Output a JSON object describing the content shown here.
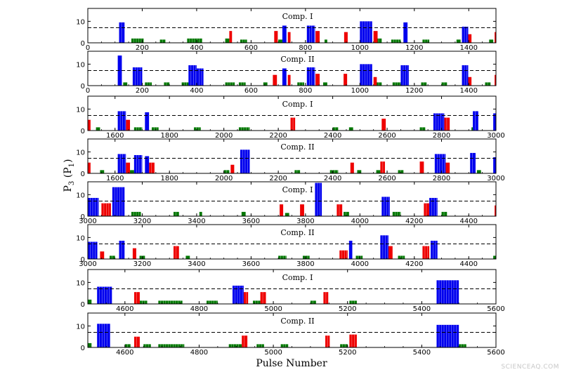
{
  "xlabel": "Pulse Number",
  "ylabel": "P",
  "ylabel_sub": "3",
  "ylabel_paren_open": " (P",
  "ylabel_paren_sub": "1",
  "ylabel_paren_close": ")",
  "watermark": "SCIENCEAQ.COM",
  "colors": {
    "blue": "#0000ee",
    "red": "#ee0000",
    "green": "#007700",
    "threshold_line": "#000000"
  },
  "threshold": 7,
  "chart_data": [
    {
      "type": "bar",
      "component": "Comp. I",
      "xlim": [
        0,
        1500
      ],
      "ylim": [
        0,
        16
      ],
      "xticks": [
        0,
        200,
        400,
        600,
        800,
        1000,
        1200,
        1400
      ],
      "yticks": [
        0,
        10
      ],
      "blue": [
        [
          115,
          135,
          9.5
        ],
        [
          715,
          730,
          8
        ],
        [
          805,
          835,
          8
        ],
        [
          1000,
          1045,
          10
        ],
        [
          1160,
          1175,
          9.5
        ],
        [
          1375,
          1398,
          7.5
        ]
      ],
      "red": [
        [
          520,
          530,
          5.5
        ],
        [
          685,
          698,
          5.5
        ],
        [
          735,
          745,
          5
        ],
        [
          837,
          852,
          5.5
        ],
        [
          942,
          955,
          5
        ],
        [
          1050,
          1065,
          5.5
        ],
        [
          1398,
          1410,
          4
        ],
        [
          1495,
          1500,
          5
        ]
      ],
      "green": [
        [
          160,
          205,
          2
        ],
        [
          265,
          285,
          1.5
        ],
        [
          365,
          420,
          2
        ],
        [
          505,
          520,
          2
        ],
        [
          560,
          585,
          1.5
        ],
        [
          700,
          715,
          1.5
        ],
        [
          870,
          880,
          1.5
        ],
        [
          1060,
          1080,
          2
        ],
        [
          1115,
          1150,
          1.5
        ],
        [
          1230,
          1255,
          1.5
        ],
        [
          1355,
          1370,
          1.5
        ],
        [
          1475,
          1490,
          1.5
        ]
      ]
    },
    {
      "type": "bar",
      "component": "Comp. II",
      "xlim": [
        0,
        1500
      ],
      "ylim": [
        0,
        16
      ],
      "xticks": [
        0,
        200,
        400,
        600,
        800,
        1000,
        1200,
        1400
      ],
      "yticks": [
        0,
        10
      ],
      "blue": [
        [
          110,
          125,
          14
        ],
        [
          165,
          200,
          8.5
        ],
        [
          370,
          400,
          9.5
        ],
        [
          400,
          425,
          8
        ],
        [
          715,
          730,
          8
        ],
        [
          805,
          835,
          8.5
        ],
        [
          1000,
          1045,
          10
        ],
        [
          1150,
          1180,
          9.5
        ],
        [
          1375,
          1398,
          9.5
        ]
      ],
      "red": [
        [
          680,
          695,
          5
        ],
        [
          735,
          745,
          5
        ],
        [
          837,
          852,
          5.5
        ],
        [
          940,
          953,
          5.5
        ],
        [
          1050,
          1062,
          4
        ],
        [
          1398,
          1410,
          4
        ],
        [
          1495,
          1500,
          5
        ]
      ],
      "green": [
        [
          130,
          145,
          1.5
        ],
        [
          210,
          235,
          1.5
        ],
        [
          280,
          300,
          1.5
        ],
        [
          345,
          375,
          1.5
        ],
        [
          505,
          540,
          1.5
        ],
        [
          555,
          580,
          1.5
        ],
        [
          645,
          660,
          1.5
        ],
        [
          770,
          795,
          1.5
        ],
        [
          865,
          880,
          1.5
        ],
        [
          1060,
          1080,
          1.5
        ],
        [
          1120,
          1150,
          1.5
        ],
        [
          1225,
          1245,
          1.5
        ],
        [
          1300,
          1320,
          1.5
        ],
        [
          1460,
          1480,
          1.5
        ]
      ]
    },
    {
      "type": "bar",
      "component": "Comp. I",
      "xlim": [
        1500,
        3000
      ],
      "ylim": [
        0,
        16
      ],
      "xticks": [
        1600,
        1800,
        2000,
        2200,
        2400,
        2600,
        2800,
        3000
      ],
      "yticks": [
        0,
        10
      ],
      "blue": [
        [
          1610,
          1640,
          9
        ],
        [
          1710,
          1725,
          8.5
        ],
        [
          2770,
          2810,
          8
        ],
        [
          2915,
          2935,
          9
        ],
        [
          2990,
          3000,
          8
        ]
      ],
      "red": [
        [
          1500,
          1510,
          5
        ],
        [
          1640,
          1655,
          5
        ],
        [
          2245,
          2262,
          6
        ],
        [
          2580,
          2595,
          5.5
        ],
        [
          2810,
          2830,
          6
        ]
      ],
      "green": [
        [
          1530,
          1545,
          1.5
        ],
        [
          1670,
          1700,
          1.5
        ],
        [
          1735,
          1760,
          1.5
        ],
        [
          1890,
          1915,
          1.5
        ],
        [
          2055,
          2095,
          1.5
        ],
        [
          2400,
          2420,
          1.5
        ],
        [
          2460,
          2475,
          1.5
        ],
        [
          2720,
          2740,
          1.5
        ],
        [
          2910,
          2930,
          1.5
        ]
      ]
    },
    {
      "type": "bar",
      "component": "Comp. II",
      "xlim": [
        1500,
        3000
      ],
      "ylim": [
        0,
        16
      ],
      "xticks": [
        1600,
        1800,
        2000,
        2200,
        2400,
        2600,
        2800,
        3000
      ],
      "yticks": [
        0,
        10
      ],
      "blue": [
        [
          1610,
          1640,
          9
        ],
        [
          1670,
          1700,
          8.5
        ],
        [
          1710,
          1725,
          8
        ],
        [
          2060,
          2095,
          11
        ],
        [
          2775,
          2815,
          9
        ],
        [
          2905,
          2925,
          9.5
        ],
        [
          2990,
          3000,
          7.5
        ]
      ],
      "red": [
        [
          1500,
          1510,
          5
        ],
        [
          1640,
          1655,
          5
        ],
        [
          1725,
          1745,
          5
        ],
        [
          2025,
          2038,
          4
        ],
        [
          2465,
          2478,
          5
        ],
        [
          2575,
          2592,
          5.5
        ],
        [
          2720,
          2735,
          5.5
        ],
        [
          2815,
          2830,
          5
        ]
      ],
      "green": [
        [
          1545,
          1560,
          1.5
        ],
        [
          1655,
          1670,
          1.5
        ],
        [
          2000,
          2020,
          1.5
        ],
        [
          2260,
          2280,
          1.5
        ],
        [
          2390,
          2420,
          1.5
        ],
        [
          2490,
          2505,
          1.5
        ],
        [
          2560,
          2575,
          1.5
        ],
        [
          2640,
          2660,
          1.5
        ],
        [
          2930,
          2945,
          1.5
        ]
      ]
    },
    {
      "type": "bar",
      "component": "Comp. I",
      "xlim": [
        3000,
        4500
      ],
      "ylim": [
        0,
        16
      ],
      "xticks": [
        3000,
        3200,
        3400,
        3600,
        3800,
        4000,
        4200,
        4400
      ],
      "yticks": [
        0,
        10
      ],
      "blue": [
        [
          3000,
          3040,
          8.5
        ],
        [
          3090,
          3135,
          13.5
        ],
        [
          3835,
          3860,
          15.5
        ],
        [
          4080,
          4110,
          9
        ],
        [
          4255,
          4285,
          8.5
        ]
      ],
      "red": [
        [
          3050,
          3085,
          6
        ],
        [
          3705,
          3718,
          5.5
        ],
        [
          3780,
          3795,
          5.5
        ],
        [
          3915,
          3935,
          5.5
        ],
        [
          4235,
          4255,
          6
        ],
        [
          4495,
          4500,
          5
        ]
      ],
      "green": [
        [
          3160,
          3195,
          2
        ],
        [
          3315,
          3335,
          2
        ],
        [
          3410,
          3420,
          2
        ],
        [
          3565,
          3580,
          2
        ],
        [
          3725,
          3740,
          1.5
        ],
        [
          3940,
          3960,
          2
        ],
        [
          4120,
          4150,
          2
        ],
        [
          4300,
          4320,
          2
        ]
      ]
    },
    {
      "type": "bar",
      "component": "Comp. II",
      "xlim": [
        3000,
        4500
      ],
      "ylim": [
        0,
        16
      ],
      "xticks": [
        3000,
        3200,
        3400,
        3600,
        3800,
        4000,
        4200,
        4400
      ],
      "yticks": [
        0,
        10
      ],
      "blue": [
        [
          3000,
          3035,
          8
        ],
        [
          3115,
          3135,
          8.5
        ],
        [
          3960,
          3972,
          8.5
        ],
        [
          4075,
          4105,
          11
        ],
        [
          4260,
          4285,
          8.5
        ]
      ],
      "red": [
        [
          3045,
          3060,
          3.5
        ],
        [
          3165,
          3178,
          5
        ],
        [
          3315,
          3335,
          6
        ],
        [
          3925,
          3955,
          4
        ],
        [
          4105,
          4120,
          6
        ],
        [
          4230,
          4255,
          6
        ]
      ],
      "green": [
        [
          3080,
          3100,
          1.5
        ],
        [
          3190,
          3210,
          1.5
        ],
        [
          3360,
          3375,
          1.5
        ],
        [
          3700,
          3730,
          1.5
        ],
        [
          3790,
          3815,
          1.5
        ],
        [
          3985,
          4010,
          1.5
        ],
        [
          4140,
          4165,
          1.5
        ],
        [
          4490,
          4500,
          1.5
        ]
      ]
    },
    {
      "type": "bar",
      "component": "Comp. I",
      "xlim": [
        4500,
        5600
      ],
      "ylim": [
        0,
        16
      ],
      "xticks": [
        4600,
        4800,
        5000,
        5200,
        5400,
        5600
      ],
      "yticks": [
        0,
        10
      ],
      "blue": [
        [
          4525,
          4565,
          8
        ],
        [
          4890,
          4920,
          8.5
        ],
        [
          5440,
          5500,
          11
        ]
      ],
      "red": [
        [
          4625,
          4640,
          5.5
        ],
        [
          4920,
          4932,
          5.5
        ],
        [
          4965,
          4980,
          5.5
        ],
        [
          5135,
          5148,
          5.5
        ]
      ],
      "green": [
        [
          4500,
          4510,
          2
        ],
        [
          4640,
          4660,
          1.5
        ],
        [
          4690,
          4755,
          1.5
        ],
        [
          4820,
          4850,
          1.5
        ],
        [
          4945,
          4965,
          1.5
        ],
        [
          5100,
          5115,
          1.5
        ],
        [
          5205,
          5225,
          1.5
        ]
      ]
    },
    {
      "type": "bar",
      "component": "Comp. II",
      "xlim": [
        4500,
        5600
      ],
      "ylim": [
        0,
        16
      ],
      "xticks": [
        4600,
        4800,
        5000,
        5200,
        5400,
        5600
      ],
      "yticks": [
        0,
        10
      ],
      "blue": [
        [
          4525,
          4560,
          11
        ],
        [
          5440,
          5500,
          10.5
        ]
      ],
      "red": [
        [
          4625,
          4640,
          5
        ],
        [
          4915,
          4930,
          5.5
        ],
        [
          5140,
          5152,
          5.5
        ],
        [
          5205,
          5225,
          6
        ]
      ],
      "green": [
        [
          4500,
          4510,
          2
        ],
        [
          4600,
          4615,
          1.5
        ],
        [
          4650,
          4670,
          1.5
        ],
        [
          4690,
          4760,
          1.5
        ],
        [
          4880,
          4915,
          1.5
        ],
        [
          4955,
          4975,
          1.5
        ],
        [
          5020,
          5040,
          1.5
        ],
        [
          5180,
          5200,
          1.5
        ],
        [
          5500,
          5520,
          1.5
        ]
      ]
    }
  ]
}
